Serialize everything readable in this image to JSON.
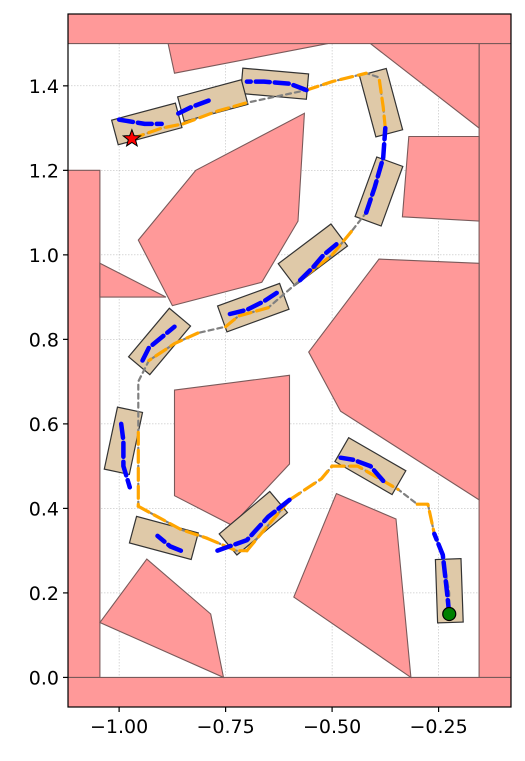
{
  "chart_data": {
    "type": "scatter",
    "title": "",
    "xlabel": "",
    "ylabel": "",
    "xlim": [
      -1.12,
      -0.08
    ],
    "ylim": [
      -0.07,
      1.57
    ],
    "x_ticks": [
      -1.0,
      -0.75,
      -0.5,
      -0.25
    ],
    "x_tick_labels": [
      "−1.00",
      "−0.75",
      "−0.50",
      "−0.25"
    ],
    "y_ticks": [
      0.0,
      0.2,
      0.4,
      0.6,
      0.8,
      1.0,
      1.2,
      1.4
    ],
    "y_tick_labels": [
      "0.0",
      "0.2",
      "0.4",
      "0.6",
      "0.8",
      "1.0",
      "1.2",
      "1.4"
    ],
    "grid": true,
    "colors": {
      "obstacle_fill": "#ff9999",
      "obstacle_edge": "#7a5a5a",
      "footprint_fill": "#dfc9a8",
      "footprint_edge": "#333333",
      "reference_path": "#808080",
      "segment_orange": "#ffa500",
      "segment_blue": "#0000ff",
      "start_marker": "#008000",
      "goal_marker": "#ff0000"
    },
    "obstacles": [
      [
        [
          -1.12,
          1.5
        ],
        [
          -0.08,
          1.5
        ],
        [
          -0.08,
          1.57
        ],
        [
          -1.12,
          1.57
        ]
      ],
      [
        [
          -1.12,
          -0.07
        ],
        [
          -0.08,
          -0.07
        ],
        [
          -0.08,
          0.0
        ],
        [
          -1.12,
          0.0
        ]
      ],
      [
        [
          -1.12,
          0.0
        ],
        [
          -1.045,
          0.0
        ],
        [
          -1.045,
          1.2
        ],
        [
          -1.12,
          1.2
        ]
      ],
      [
        [
          -0.155,
          0.0
        ],
        [
          -0.08,
          0.0
        ],
        [
          -0.08,
          1.5
        ],
        [
          -0.155,
          1.5
        ]
      ],
      [
        [
          -0.885,
          1.5
        ],
        [
          -0.51,
          1.5
        ],
        [
          -0.87,
          1.43
        ]
      ],
      [
        [
          -0.41,
          1.5
        ],
        [
          -0.155,
          1.5
        ],
        [
          -0.155,
          1.3
        ]
      ],
      [
        [
          -0.32,
          1.28
        ],
        [
          -0.155,
          1.28
        ],
        [
          -0.155,
          1.08
        ],
        [
          -0.335,
          1.09
        ]
      ],
      [
        [
          -0.82,
          1.2
        ],
        [
          -0.565,
          1.335
        ],
        [
          -0.58,
          1.08
        ],
        [
          -0.665,
          0.935
        ],
        [
          -0.875,
          0.88
        ],
        [
          -0.955,
          1.035
        ]
      ],
      [
        [
          -1.045,
          0.98
        ],
        [
          -0.89,
          0.9
        ],
        [
          -1.045,
          0.9
        ]
      ],
      [
        [
          -0.39,
          0.99
        ],
        [
          -0.155,
          0.98
        ],
        [
          -0.155,
          0.42
        ],
        [
          -0.48,
          0.63
        ],
        [
          -0.555,
          0.77
        ]
      ],
      [
        [
          -0.87,
          0.68
        ],
        [
          -0.6,
          0.715
        ],
        [
          -0.6,
          0.505
        ],
        [
          -0.735,
          0.36
        ],
        [
          -0.87,
          0.43
        ]
      ],
      [
        [
          -0.935,
          0.28
        ],
        [
          -0.785,
          0.15
        ],
        [
          -0.755,
          0.0
        ],
        [
          -1.045,
          0.13
        ]
      ],
      [
        [
          -0.59,
          0.19
        ],
        [
          -0.49,
          0.435
        ],
        [
          -0.35,
          0.375
        ],
        [
          -0.315,
          0.0
        ]
      ]
    ],
    "footprints": [
      {
        "center": [
          -0.225,
          0.205
        ],
        "size": [
          0.06,
          0.15
        ],
        "angle": 2
      },
      {
        "center": [
          -0.41,
          0.5
        ],
        "size": [
          0.155,
          0.065
        ],
        "angle": -30
      },
      {
        "center": [
          -0.685,
          0.365
        ],
        "size": [
          0.155,
          0.065
        ],
        "angle": 40
      },
      {
        "center": [
          -0.895,
          0.33
        ],
        "size": [
          0.15,
          0.065
        ],
        "angle": -15
      },
      {
        "center": [
          -0.99,
          0.56
        ],
        "size": [
          0.06,
          0.15
        ],
        "angle": -12
      },
      {
        "center": [
          -0.905,
          0.795
        ],
        "size": [
          0.065,
          0.15
        ],
        "angle": -40
      },
      {
        "center": [
          -0.685,
          0.875
        ],
        "size": [
          0.155,
          0.065
        ],
        "angle": 20
      },
      {
        "center": [
          -0.545,
          1.0
        ],
        "size": [
          0.155,
          0.065
        ],
        "angle": 37
      },
      {
        "center": [
          -0.39,
          1.15
        ],
        "size": [
          0.065,
          0.15
        ],
        "angle": -20
      },
      {
        "center": [
          -0.385,
          1.36
        ],
        "size": [
          0.065,
          0.15
        ],
        "angle": 15
      },
      {
        "center": [
          -0.635,
          1.405
        ],
        "size": [
          0.155,
          0.06
        ],
        "angle": -5
      },
      {
        "center": [
          -0.78,
          1.365
        ],
        "size": [
          0.155,
          0.06
        ],
        "angle": 15
      },
      {
        "center": [
          -0.935,
          1.31
        ],
        "size": [
          0.155,
          0.06
        ],
        "angle": 15
      }
    ],
    "series": [
      {
        "style": "reference_path",
        "segments": [
          [
            [
              -0.225,
              0.15
            ],
            [
              -0.225,
              0.2
            ],
            [
              -0.24,
              0.29
            ],
            [
              -0.26,
              0.34
            ],
            [
              -0.275,
              0.41
            ],
            [
              -0.3,
              0.41
            ],
            [
              -0.345,
              0.445
            ],
            [
              -0.38,
              0.465
            ],
            [
              -0.44,
              0.5
            ],
            [
              -0.5,
              0.5
            ],
            [
              -0.525,
              0.47
            ],
            [
              -0.6,
              0.42
            ],
            [
              -0.7,
              0.3
            ],
            [
              -0.725,
              0.3
            ],
            [
              -0.795,
              0.33
            ],
            [
              -0.855,
              0.35
            ],
            [
              -0.955,
              0.405
            ],
            [
              -0.955,
              0.47
            ],
            [
              -0.955,
              0.52
            ],
            [
              -0.955,
              0.58
            ],
            [
              -0.955,
              0.66
            ],
            [
              -0.955,
              0.7
            ],
            [
              -0.93,
              0.75
            ],
            [
              -0.87,
              0.79
            ],
            [
              -0.815,
              0.815
            ],
            [
              -0.75,
              0.83
            ],
            [
              -0.72,
              0.855
            ],
            [
              -0.65,
              0.875
            ],
            [
              -0.575,
              0.94
            ],
            [
              -0.5,
              1.0
            ],
            [
              -0.455,
              1.055
            ],
            [
              -0.42,
              1.1
            ],
            [
              -0.4,
              1.16
            ],
            [
              -0.38,
              1.23
            ],
            [
              -0.375,
              1.3
            ],
            [
              -0.38,
              1.35
            ],
            [
              -0.39,
              1.42
            ],
            [
              -0.42,
              1.43
            ],
            [
              -0.5,
              1.41
            ],
            [
              -0.56,
              1.39
            ],
            [
              -0.7,
              1.36
            ],
            [
              -0.77,
              1.34
            ],
            [
              -0.85,
              1.31
            ],
            [
              -0.9,
              1.3
            ],
            [
              -0.97,
              1.275
            ]
          ]
        ]
      },
      {
        "style": "segment_orange",
        "segments": [
          [
            [
              -0.3,
              0.41
            ],
            [
              -0.275,
              0.41
            ],
            [
              -0.26,
              0.34
            ]
          ],
          [
            [
              -0.5,
              0.5
            ],
            [
              -0.44,
              0.5
            ],
            [
              -0.38,
              0.465
            ],
            [
              -0.345,
              0.445
            ]
          ],
          [
            [
              -0.6,
              0.42
            ],
            [
              -0.525,
              0.47
            ],
            [
              -0.5,
              0.5
            ]
          ],
          [
            [
              -0.7,
              0.3
            ],
            [
              -0.6,
              0.42
            ]
          ],
          [
            [
              -0.795,
              0.33
            ],
            [
              -0.725,
              0.3
            ],
            [
              -0.7,
              0.3
            ]
          ],
          [
            [
              -0.955,
              0.405
            ],
            [
              -0.855,
              0.35
            ],
            [
              -0.795,
              0.33
            ]
          ],
          [
            [
              -0.955,
              0.58
            ],
            [
              -0.955,
              0.52
            ],
            [
              -0.955,
              0.47
            ],
            [
              -0.955,
              0.405
            ]
          ],
          [
            [
              -0.815,
              0.815
            ],
            [
              -0.87,
              0.79
            ],
            [
              -0.93,
              0.75
            ]
          ],
          [
            [
              -0.65,
              0.875
            ],
            [
              -0.72,
              0.855
            ],
            [
              -0.75,
              0.83
            ]
          ],
          [
            [
              -0.455,
              1.055
            ],
            [
              -0.5,
              1.0
            ],
            [
              -0.575,
              0.94
            ]
          ],
          [
            [
              -0.375,
              1.3
            ],
            [
              -0.38,
              1.35
            ],
            [
              -0.39,
              1.42
            ]
          ],
          [
            [
              -0.56,
              1.39
            ],
            [
              -0.5,
              1.41
            ],
            [
              -0.42,
              1.43
            ]
          ],
          [
            [
              -0.85,
              1.31
            ],
            [
              -0.77,
              1.34
            ],
            [
              -0.7,
              1.36
            ]
          ],
          [
            [
              -0.97,
              1.275
            ],
            [
              -0.9,
              1.3
            ],
            [
              -0.85,
              1.31
            ]
          ]
        ]
      },
      {
        "style": "segment_blue",
        "segments": [
          [
            [
              -0.225,
              0.15
            ],
            [
              -0.23,
              0.2
            ],
            [
              -0.24,
              0.29
            ],
            [
              -0.26,
              0.34
            ]
          ],
          [
            [
              -0.38,
              0.465
            ],
            [
              -0.41,
              0.5
            ],
            [
              -0.45,
              0.515
            ],
            [
              -0.48,
              0.52
            ]
          ],
          [
            [
              -0.6,
              0.42
            ],
            [
              -0.65,
              0.38
            ],
            [
              -0.7,
              0.325
            ],
            [
              -0.77,
              0.3
            ]
          ],
          [
            [
              -0.855,
              0.3
            ],
            [
              -0.88,
              0.31
            ],
            [
              -0.91,
              0.335
            ]
          ],
          [
            [
              -0.995,
              0.6
            ],
            [
              -0.99,
              0.56
            ],
            [
              -0.99,
              0.5
            ],
            [
              -0.975,
              0.45
            ]
          ],
          [
            [
              -0.945,
              0.75
            ],
            [
              -0.93,
              0.78
            ],
            [
              -0.87,
              0.83
            ]
          ],
          [
            [
              -0.74,
              0.86
            ],
            [
              -0.7,
              0.87
            ],
            [
              -0.66,
              0.89
            ],
            [
              -0.63,
              0.91
            ]
          ],
          [
            [
              -0.575,
              0.94
            ],
            [
              -0.545,
              0.97
            ],
            [
              -0.52,
              1.0
            ],
            [
              -0.49,
              1.025
            ]
          ],
          [
            [
              -0.42,
              1.1
            ],
            [
              -0.4,
              1.16
            ],
            [
              -0.38,
              1.23
            ],
            [
              -0.375,
              1.3
            ]
          ],
          [
            [
              -0.56,
              1.39
            ],
            [
              -0.6,
              1.405
            ],
            [
              -0.66,
              1.41
            ],
            [
              -0.7,
              1.41
            ]
          ],
          [
            [
              -0.79,
              1.365
            ],
            [
              -0.83,
              1.35
            ],
            [
              -0.87,
              1.33
            ]
          ],
          [
            [
              -1.0,
              1.32
            ],
            [
              -0.94,
              1.31
            ],
            [
              -0.9,
              1.31
            ]
          ]
        ]
      }
    ],
    "start_marker": {
      "x": -0.225,
      "y": 0.15,
      "shape": "circle"
    },
    "goal_marker": {
      "x": -0.97,
      "y": 1.275,
      "shape": "star"
    }
  }
}
